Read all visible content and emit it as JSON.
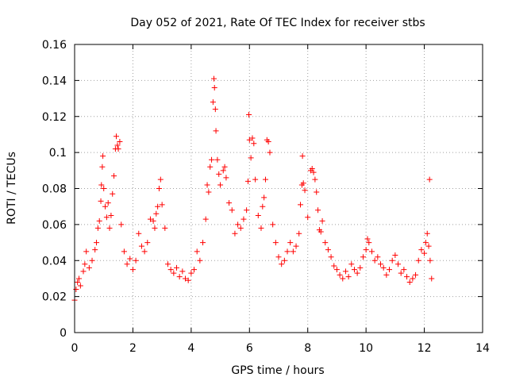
{
  "chart_data": {
    "type": "scatter",
    "title": "Day 052 of 2021, Rate Of TEC Index for receiver stbs",
    "xlabel": "GPS time / hours",
    "ylabel": "ROTI / TECUs",
    "xlim": [
      0,
      14
    ],
    "ylim": [
      0,
      0.16
    ],
    "xticks": [
      "0",
      "2",
      "4",
      "6",
      "8",
      "10",
      "12",
      "14"
    ],
    "yticks": [
      "0",
      "0.02",
      "0.04",
      "0.06",
      "0.08",
      "0.1",
      "0.12",
      "0.14",
      "0.16"
    ],
    "grid": true,
    "marker": "+",
    "colors": {
      "points": "#ff0000",
      "grid": "#a0a0a0",
      "axes": "#000000"
    },
    "series": [
      {
        "points": [
          [
            0.0,
            0.018
          ],
          [
            0.05,
            0.024
          ],
          [
            0.1,
            0.028
          ],
          [
            0.15,
            0.03
          ],
          [
            0.2,
            0.026
          ],
          [
            0.3,
            0.034
          ],
          [
            0.35,
            0.038
          ],
          [
            0.4,
            0.045
          ],
          [
            0.5,
            0.036
          ],
          [
            0.6,
            0.04
          ],
          [
            0.7,
            0.046
          ],
          [
            0.75,
            0.05
          ],
          [
            0.8,
            0.058
          ],
          [
            0.85,
            0.062
          ],
          [
            0.9,
            0.073
          ],
          [
            0.92,
            0.082
          ],
          [
            0.95,
            0.092
          ],
          [
            0.97,
            0.098
          ],
          [
            1.0,
            0.08
          ],
          [
            1.05,
            0.07
          ],
          [
            1.1,
            0.064
          ],
          [
            1.15,
            0.072
          ],
          [
            1.2,
            0.058
          ],
          [
            1.25,
            0.065
          ],
          [
            1.3,
            0.077
          ],
          [
            1.35,
            0.087
          ],
          [
            1.4,
            0.102
          ],
          [
            1.43,
            0.109
          ],
          [
            1.47,
            0.104
          ],
          [
            1.5,
            0.102
          ],
          [
            1.55,
            0.106
          ],
          [
            1.6,
            0.06
          ],
          [
            1.7,
            0.045
          ],
          [
            1.8,
            0.038
          ],
          [
            1.9,
            0.041
          ],
          [
            2.0,
            0.035
          ],
          [
            2.1,
            0.04
          ],
          [
            2.2,
            0.055
          ],
          [
            2.3,
            0.048
          ],
          [
            2.4,
            0.045
          ],
          [
            2.5,
            0.05
          ],
          [
            2.6,
            0.063
          ],
          [
            2.7,
            0.062
          ],
          [
            2.75,
            0.058
          ],
          [
            2.8,
            0.066
          ],
          [
            2.85,
            0.07
          ],
          [
            2.9,
            0.08
          ],
          [
            2.95,
            0.085
          ],
          [
            3.0,
            0.071
          ],
          [
            3.1,
            0.058
          ],
          [
            3.2,
            0.038
          ],
          [
            3.3,
            0.035
          ],
          [
            3.4,
            0.033
          ],
          [
            3.5,
            0.036
          ],
          [
            3.6,
            0.031
          ],
          [
            3.7,
            0.034
          ],
          [
            3.8,
            0.03
          ],
          [
            3.9,
            0.029
          ],
          [
            4.0,
            0.033
          ],
          [
            4.1,
            0.035
          ],
          [
            4.2,
            0.045
          ],
          [
            4.3,
            0.04
          ],
          [
            4.4,
            0.05
          ],
          [
            4.5,
            0.063
          ],
          [
            4.55,
            0.082
          ],
          [
            4.6,
            0.078
          ],
          [
            4.65,
            0.092
          ],
          [
            4.7,
            0.096
          ],
          [
            4.75,
            0.128
          ],
          [
            4.78,
            0.141
          ],
          [
            4.8,
            0.136
          ],
          [
            4.83,
            0.124
          ],
          [
            4.85,
            0.112
          ],
          [
            4.9,
            0.096
          ],
          [
            4.95,
            0.088
          ],
          [
            5.0,
            0.082
          ],
          [
            5.1,
            0.09
          ],
          [
            5.15,
            0.092
          ],
          [
            5.2,
            0.086
          ],
          [
            5.3,
            0.072
          ],
          [
            5.4,
            0.068
          ],
          [
            5.5,
            0.055
          ],
          [
            5.6,
            0.06
          ],
          [
            5.7,
            0.058
          ],
          [
            5.8,
            0.063
          ],
          [
            5.9,
            0.068
          ],
          [
            5.95,
            0.084
          ],
          [
            5.98,
            0.121
          ],
          [
            6.0,
            0.107
          ],
          [
            6.05,
            0.097
          ],
          [
            6.1,
            0.108
          ],
          [
            6.15,
            0.105
          ],
          [
            6.2,
            0.085
          ],
          [
            6.3,
            0.065
          ],
          [
            6.4,
            0.058
          ],
          [
            6.45,
            0.07
          ],
          [
            6.5,
            0.075
          ],
          [
            6.55,
            0.085
          ],
          [
            6.6,
            0.107
          ],
          [
            6.65,
            0.106
          ],
          [
            6.7,
            0.1
          ],
          [
            6.8,
            0.06
          ],
          [
            6.9,
            0.05
          ],
          [
            7.0,
            0.042
          ],
          [
            7.1,
            0.038
          ],
          [
            7.2,
            0.04
          ],
          [
            7.3,
            0.045
          ],
          [
            7.4,
            0.05
          ],
          [
            7.5,
            0.045
          ],
          [
            7.6,
            0.048
          ],
          [
            7.7,
            0.055
          ],
          [
            7.75,
            0.071
          ],
          [
            7.8,
            0.082
          ],
          [
            7.82,
            0.098
          ],
          [
            7.85,
            0.083
          ],
          [
            7.9,
            0.079
          ],
          [
            8.0,
            0.064
          ],
          [
            8.1,
            0.09
          ],
          [
            8.15,
            0.091
          ],
          [
            8.2,
            0.089
          ],
          [
            8.25,
            0.085
          ],
          [
            8.3,
            0.078
          ],
          [
            8.35,
            0.068
          ],
          [
            8.4,
            0.057
          ],
          [
            8.45,
            0.056
          ],
          [
            8.5,
            0.062
          ],
          [
            8.6,
            0.05
          ],
          [
            8.7,
            0.046
          ],
          [
            8.8,
            0.042
          ],
          [
            8.9,
            0.037
          ],
          [
            9.0,
            0.035
          ],
          [
            9.1,
            0.032
          ],
          [
            9.2,
            0.03
          ],
          [
            9.3,
            0.034
          ],
          [
            9.4,
            0.031
          ],
          [
            9.5,
            0.038
          ],
          [
            9.6,
            0.035
          ],
          [
            9.7,
            0.033
          ],
          [
            9.8,
            0.036
          ],
          [
            9.9,
            0.042
          ],
          [
            10.0,
            0.046
          ],
          [
            10.05,
            0.052
          ],
          [
            10.1,
            0.05
          ],
          [
            10.2,
            0.045
          ],
          [
            10.3,
            0.04
          ],
          [
            10.4,
            0.042
          ],
          [
            10.5,
            0.038
          ],
          [
            10.6,
            0.036
          ],
          [
            10.7,
            0.032
          ],
          [
            10.8,
            0.035
          ],
          [
            10.9,
            0.04
          ],
          [
            11.0,
            0.043
          ],
          [
            11.1,
            0.038
          ],
          [
            11.2,
            0.033
          ],
          [
            11.3,
            0.035
          ],
          [
            11.4,
            0.031
          ],
          [
            11.5,
            0.028
          ],
          [
            11.6,
            0.03
          ],
          [
            11.7,
            0.032
          ],
          [
            11.8,
            0.04
          ],
          [
            11.9,
            0.046
          ],
          [
            12.0,
            0.044
          ],
          [
            12.05,
            0.05
          ],
          [
            12.1,
            0.055
          ],
          [
            12.15,
            0.048
          ],
          [
            12.2,
            0.04
          ],
          [
            12.18,
            0.085
          ],
          [
            12.25,
            0.03
          ]
        ]
      }
    ]
  }
}
